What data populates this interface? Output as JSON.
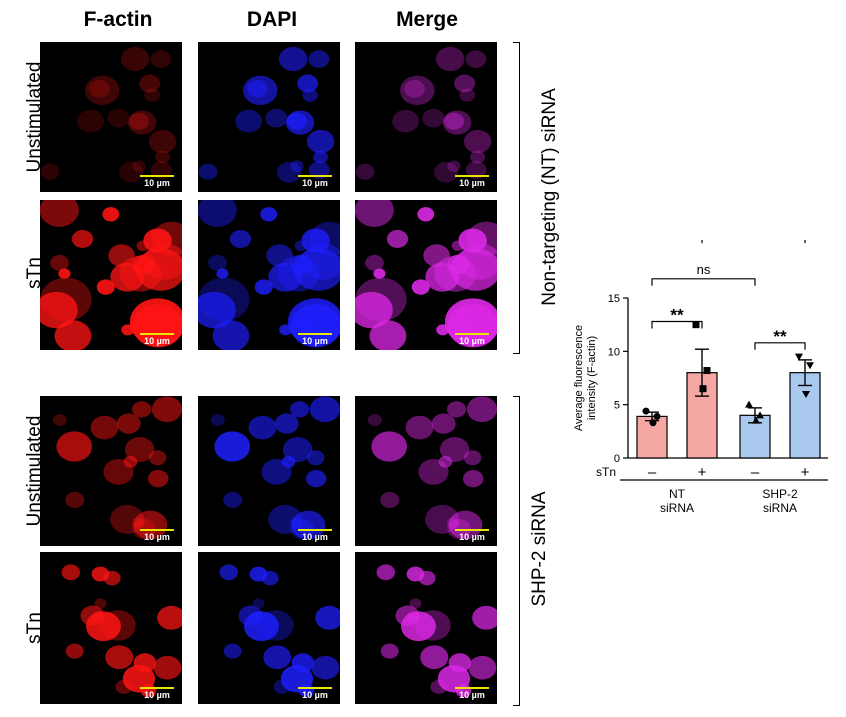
{
  "columns": [
    {
      "label": "F-actin",
      "color": "#e8262a"
    },
    {
      "label": "DAPI",
      "color": "#2e3192"
    },
    {
      "label": "Merge",
      "color": "#f7941d"
    }
  ],
  "row_labels": [
    "Unstimulated",
    "sTn",
    "Unstimulated",
    "sTn"
  ],
  "scale_bar": "10 µm",
  "group_labels": [
    "Non-targeting (NT) siRNA",
    "SHP-2 siRNA"
  ],
  "chart_data": {
    "type": "bar",
    "ylabel": "Average fluorescence\nintensity (F-actin)",
    "ylim": [
      0,
      15
    ],
    "yticks": [
      0,
      5,
      10,
      15
    ],
    "stim_label": "sTn",
    "stim_marks": [
      "–",
      "+",
      "–",
      "+"
    ],
    "group_labels": [
      "NT\nsiRNA",
      "SHP-2\nsiRNA"
    ],
    "bars": [
      {
        "value": 3.9,
        "err": 0.4,
        "color": "#f4a7a3",
        "points": [
          4.4,
          3.9,
          3.3
        ],
        "marker": "circle"
      },
      {
        "value": 8.0,
        "err": 2.2,
        "color": "#f4a7a3",
        "points": [
          12.5,
          8.2,
          6.5
        ],
        "marker": "square"
      },
      {
        "value": 4.0,
        "err": 0.7,
        "color": "#a9c8ee",
        "points": [
          5.0,
          4.0,
          3.5
        ],
        "marker": "triangle"
      },
      {
        "value": 8.0,
        "err": 1.2,
        "color": "#a9c8ee",
        "points": [
          9.5,
          8.7,
          6.0
        ],
        "marker": "triangle-down"
      }
    ],
    "comparisons": [
      {
        "from": 0,
        "to": 1,
        "label": "**"
      },
      {
        "from": 2,
        "to": 3,
        "label": "**"
      },
      {
        "from": 0,
        "to": 2,
        "label": "ns"
      },
      {
        "from": 1,
        "to": 3,
        "label": "ns"
      }
    ]
  }
}
